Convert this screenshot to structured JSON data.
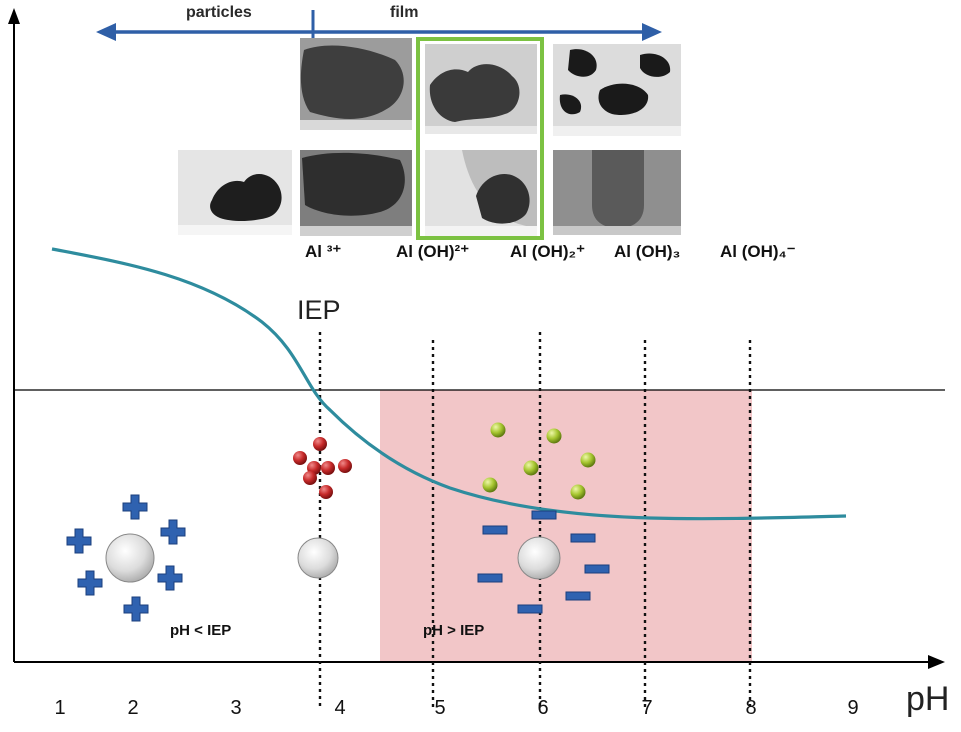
{
  "diagram": {
    "arrow_labels": {
      "left": "particles",
      "right": "film"
    },
    "species": [
      "Al ³⁺",
      "Al (OH)²⁺",
      "Al (OH)₂⁺",
      "Al (OH)₃",
      "Al (OH)₄⁻"
    ],
    "iep_label": "IEP",
    "x_axis_label": "pH",
    "x_ticks": [
      "1",
      "2",
      "3",
      "4",
      "5",
      "6",
      "7",
      "8",
      "9"
    ],
    "regions": {
      "below": "pH < IEP",
      "above": "pH > IEP"
    },
    "colors": {
      "arrow": "#2f5fa7",
      "curve": "#2e8c9e",
      "highlight_frame": "#7cc242",
      "shaded_region": "#f2c6c8",
      "plus_sign": "#2f62b0",
      "red_ion": "#c72a2a",
      "green_ion": "#9cc226"
    }
  }
}
